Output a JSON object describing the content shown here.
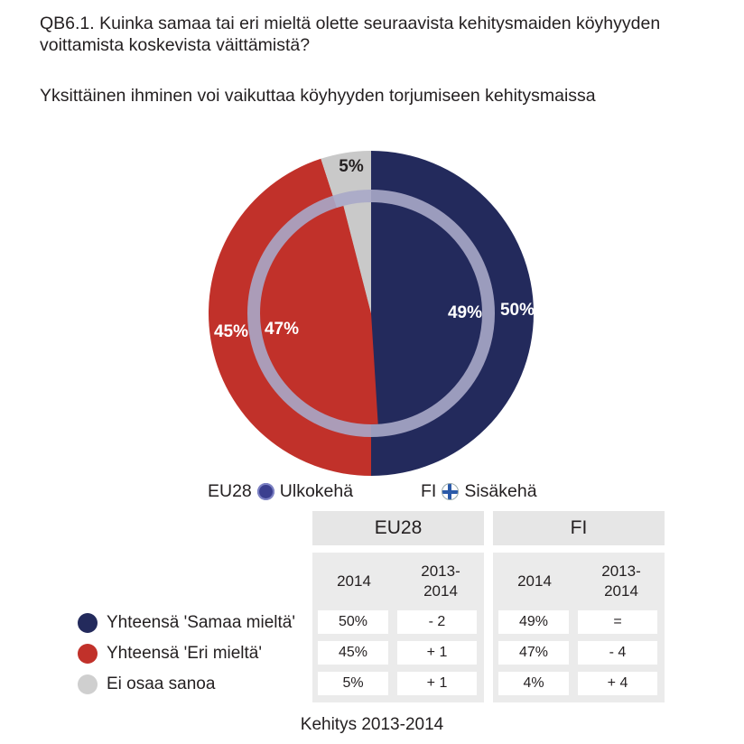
{
  "question": "QB6.1. Kuinka samaa tai eri mieltä olette seuraavista kehitysmaiden köyhyyden voittamista koskevista väittämistä?",
  "subtitle": "Yksittäinen ihminen voi vaikuttaa köyhyyden torjumiseen kehitysmaissa",
  "chart_data": {
    "type": "pie",
    "categories": [
      "Yhteensä 'Samaa mieltä'",
      "Yhteensä 'Eri mieltä'",
      "Ei osaa sanoa"
    ],
    "series": [
      {
        "name": "EU28",
        "ring": "outer",
        "values": [
          50,
          45,
          5
        ],
        "labels": [
          "50%",
          "45%",
          "5%"
        ]
      },
      {
        "name": "FI",
        "ring": "inner",
        "values": [
          49,
          47,
          4
        ],
        "labels": [
          "49%",
          "47%",
          ""
        ]
      }
    ]
  },
  "colors": {
    "agree": "#232a5c",
    "disagree": "#c1312a",
    "dontknow": "#c9c9c9",
    "ring": "#a8a8c8"
  },
  "legend": {
    "eu_label": "EU28",
    "eu_ring": "Ulkokehä",
    "fi_label": "FI",
    "fi_ring": "Sisäkehä"
  },
  "table": {
    "groups": [
      "EU28",
      "FI"
    ],
    "col_year": "2014",
    "col_change": "2013-\n2014",
    "rows": [
      {
        "label": "Yhteensä 'Samaa mieltä'",
        "eu_2014": "50%",
        "eu_change": "- 2",
        "fi_2014": "49%",
        "fi_change": "="
      },
      {
        "label": "Yhteensä 'Eri mieltä'",
        "eu_2014": "45%",
        "eu_change": "+ 1",
        "fi_2014": "47%",
        "fi_change": "- 4"
      },
      {
        "label": "Ei osaa sanoa",
        "eu_2014": "5%",
        "eu_change": "+ 1",
        "fi_2014": "4%",
        "fi_change": "+ 4"
      }
    ]
  },
  "footer": "Kehitys 2013-2014"
}
